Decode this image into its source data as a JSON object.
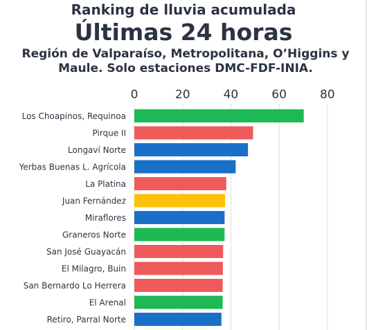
{
  "header": {
    "title": "Ranking de lluvia acumulada",
    "subtitle": "Últimas 24 horas",
    "region": "Región de Valparaíso, Metropolitana, O’Higgins y Maule. Solo estaciones DMC-FDF-INIA."
  },
  "colors": {
    "green": "#1db954",
    "red": "#ef5a5a",
    "blue": "#1a6fc7",
    "yellow": "#ffc107"
  },
  "chart_data": {
    "type": "bar",
    "orientation": "horizontal",
    "x_ticks": [
      0,
      20,
      40,
      60,
      80
    ],
    "xlim": [
      0,
      80
    ],
    "grid": true,
    "categories": [
      "Los Choapinos, Requinoa",
      "Pirque II",
      "Longaví Norte",
      "Yerbas Buenas L. Agrícola",
      "La Platina",
      "Juan Fernández",
      "Miraflores",
      "Graneros Norte",
      "San José Guayacán",
      "El Milagro, Buin",
      "San Bernardo Lo Herrera",
      "El Arenal",
      "Retiro, Parral Norte"
    ],
    "values": [
      70.2,
      49.2,
      47.1,
      42.0,
      38.1,
      37.6,
      37.4,
      37.4,
      36.8,
      36.7,
      36.6,
      36.6,
      36.1
    ],
    "bar_colors": [
      "green",
      "red",
      "blue",
      "blue",
      "red",
      "yellow",
      "blue",
      "green",
      "red",
      "red",
      "red",
      "green",
      "blue"
    ]
  }
}
